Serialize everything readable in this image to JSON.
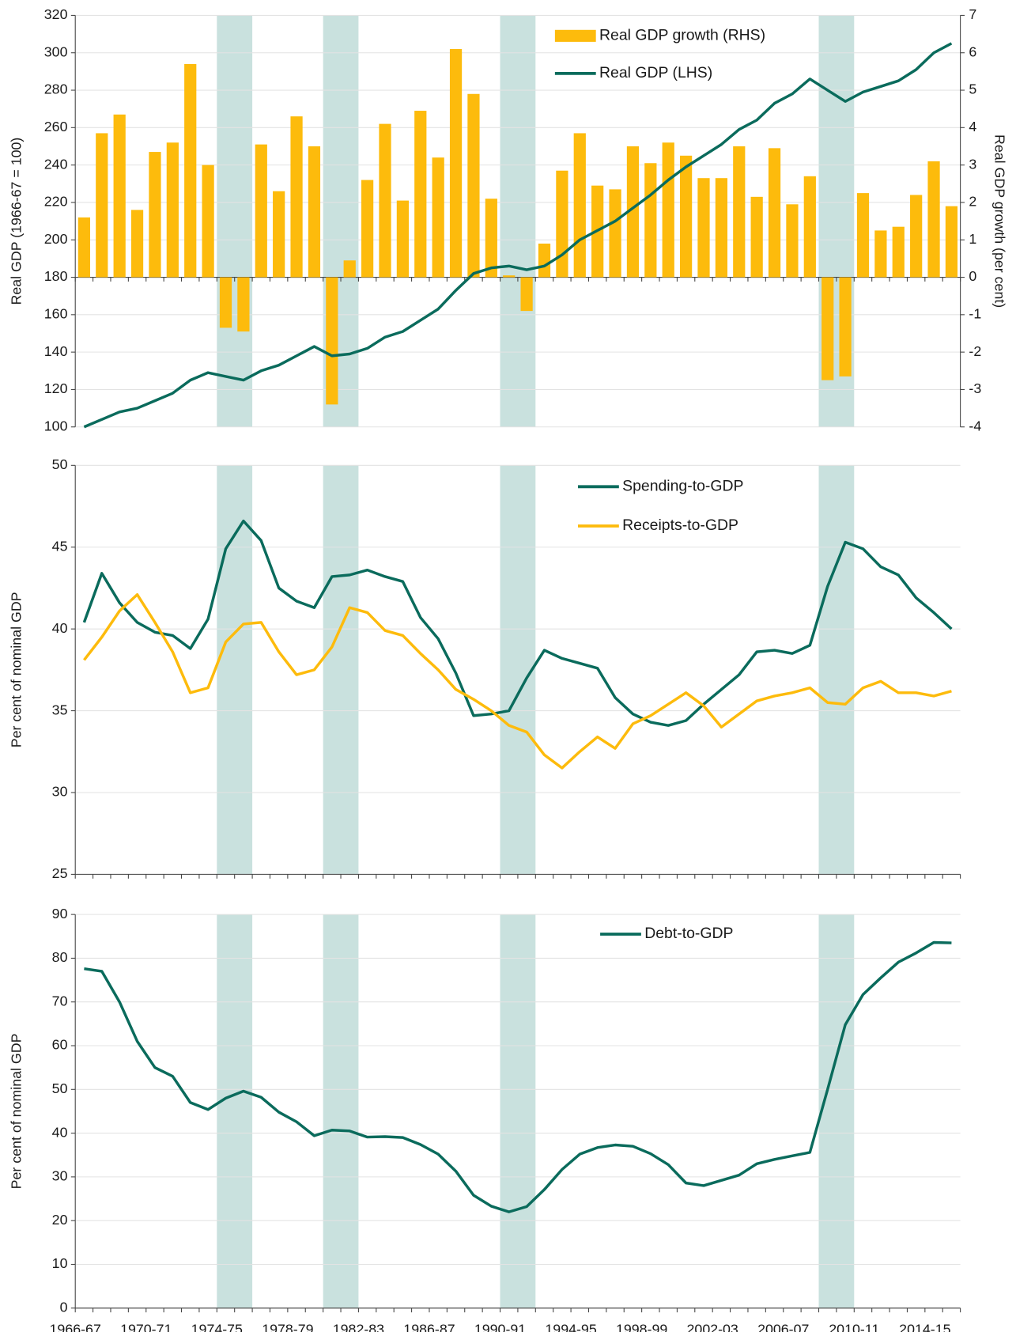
{
  "chart_data": [
    {
      "type": "combo",
      "ylabel": "Real GDP (1966-67 = 100)",
      "y2label": "Real GDP growth (per cent)",
      "ylim": [
        100,
        320
      ],
      "yticks": [
        100,
        120,
        140,
        160,
        180,
        200,
        220,
        240,
        260,
        280,
        300,
        320
      ],
      "y2lim": [
        -4,
        7
      ],
      "y2ticks": [
        -4,
        -3,
        -2,
        -1,
        0,
        1,
        2,
        3,
        4,
        5,
        6,
        7
      ],
      "grid": true,
      "shaded": [
        [
          8,
          9
        ],
        [
          14,
          15
        ],
        [
          24,
          25
        ],
        [
          42,
          43
        ]
      ],
      "series": [
        {
          "name": "Real GDP growth (RHS)",
          "type": "bar",
          "axis": "y2",
          "color": "#fdbb0c",
          "values": [
            1.6,
            3.85,
            4.35,
            1.8,
            3.35,
            3.6,
            5.7,
            3.0,
            -1.35,
            -1.45,
            3.55,
            2.3,
            4.3,
            3.5,
            -3.4,
            0.45,
            2.6,
            4.1,
            2.05,
            4.45,
            3.2,
            6.1,
            4.9,
            2.1,
            0.05,
            -0.9,
            0.9,
            2.85,
            3.85,
            2.45,
            2.35,
            3.5,
            3.05,
            3.6,
            3.25,
            2.65,
            2.65,
            3.5,
            2.15,
            3.45,
            1.95,
            2.7,
            -2.75,
            -2.65,
            2.25,
            1.25,
            1.35,
            2.2,
            3.1,
            1.9
          ]
        },
        {
          "name": "Real GDP (LHS)",
          "type": "line",
          "color": "#0a6b5c",
          "values": [
            100,
            104,
            108,
            110,
            114,
            118,
            125,
            129,
            127,
            125,
            130,
            133,
            138,
            143,
            138,
            139,
            142,
            148,
            151,
            157,
            163,
            173,
            182,
            185,
            186,
            184,
            186,
            192,
            200,
            205,
            210,
            217,
            224,
            232,
            239,
            245,
            251,
            259,
            264,
            273,
            278,
            286,
            280,
            274,
            279,
            282,
            285,
            291,
            300,
            305
          ]
        }
      ]
    },
    {
      "type": "line",
      "ylabel": "Per cent of nominal GDP",
      "ylim": [
        25,
        50
      ],
      "yticks": [
        25,
        30,
        35,
        40,
        45,
        50
      ],
      "grid": true,
      "shaded": [
        [
          8,
          9
        ],
        [
          14,
          15
        ],
        [
          24,
          25
        ],
        [
          42,
          43
        ]
      ],
      "series": [
        {
          "name": "Spending-to-GDP",
          "color": "#0a6b5c",
          "values": [
            40.4,
            43.4,
            41.6,
            40.4,
            39.8,
            39.6,
            38.8,
            40.6,
            44.9,
            46.6,
            45.4,
            42.5,
            41.7,
            41.3,
            43.2,
            43.3,
            43.6,
            43.2,
            42.9,
            40.7,
            39.4,
            37.3,
            34.7,
            34.8,
            35.0,
            37.0,
            38.7,
            38.2,
            37.9,
            37.6,
            35.8,
            34.8,
            34.3,
            34.1,
            34.4,
            35.4,
            36.3,
            37.2,
            38.6,
            38.7,
            38.5,
            39.0,
            42.6,
            45.3,
            44.9,
            43.8,
            43.3,
            41.9,
            41.0,
            40.0
          ]
        },
        {
          "name": "Receipts-to-GDP",
          "color": "#fdbb0c",
          "values": [
            38.1,
            39.5,
            41.1,
            42.1,
            40.4,
            38.6,
            36.1,
            36.4,
            39.2,
            40.3,
            40.4,
            38.6,
            37.2,
            37.5,
            38.9,
            41.3,
            41.0,
            39.9,
            39.6,
            38.5,
            37.5,
            36.3,
            35.7,
            35.0,
            34.1,
            33.7,
            32.3,
            31.5,
            32.5,
            33.4,
            32.7,
            34.2,
            34.7,
            35.4,
            36.1,
            35.3,
            34.0,
            34.8,
            35.6,
            35.9,
            36.1,
            36.4,
            35.5,
            35.4,
            36.4,
            36.8,
            36.1,
            36.1,
            35.9,
            36.2
          ]
        }
      ]
    },
    {
      "type": "line",
      "ylabel": "Per cent of nominal GDP",
      "categories": [
        "1966-67",
        null,
        null,
        null,
        "1970-71",
        null,
        null,
        null,
        "1974-75",
        null,
        null,
        null,
        "1978-79",
        null,
        null,
        null,
        "1982-83",
        null,
        null,
        null,
        "1986-87",
        null,
        null,
        null,
        "1990-91",
        null,
        null,
        null,
        "1994-95",
        null,
        null,
        null,
        "1998-99",
        null,
        null,
        null,
        "2002-03",
        null,
        null,
        null,
        "2006-07",
        null,
        null,
        null,
        "2010-11",
        null,
        null,
        null,
        "2014-15",
        null
      ],
      "ylim": [
        0,
        90
      ],
      "yticks": [
        0,
        10,
        20,
        30,
        40,
        50,
        60,
        70,
        80,
        90
      ],
      "grid": true,
      "shaded": [
        [
          8,
          9
        ],
        [
          14,
          15
        ],
        [
          24,
          25
        ],
        [
          42,
          43
        ]
      ],
      "series": [
        {
          "name": "Debt-to-GDP",
          "color": "#0a6b5c",
          "values": [
            77.6,
            77.0,
            70.0,
            61.0,
            55.0,
            53.0,
            47.0,
            45.4,
            48.0,
            49.6,
            48.2,
            44.8,
            42.6,
            39.4,
            40.7,
            40.5,
            39.1,
            39.2,
            39.0,
            37.4,
            35.2,
            31.3,
            25.8,
            23.3,
            22.0,
            23.2,
            27.1,
            31.7,
            35.2,
            36.7,
            37.3,
            37.0,
            35.3,
            32.8,
            28.6,
            28.0,
            29.2,
            30.4,
            33.0,
            34.0,
            34.8,
            35.6,
            50.0,
            64.8,
            71.7,
            75.5,
            79.1,
            81.2,
            83.6,
            83.5
          ]
        }
      ]
    }
  ]
}
